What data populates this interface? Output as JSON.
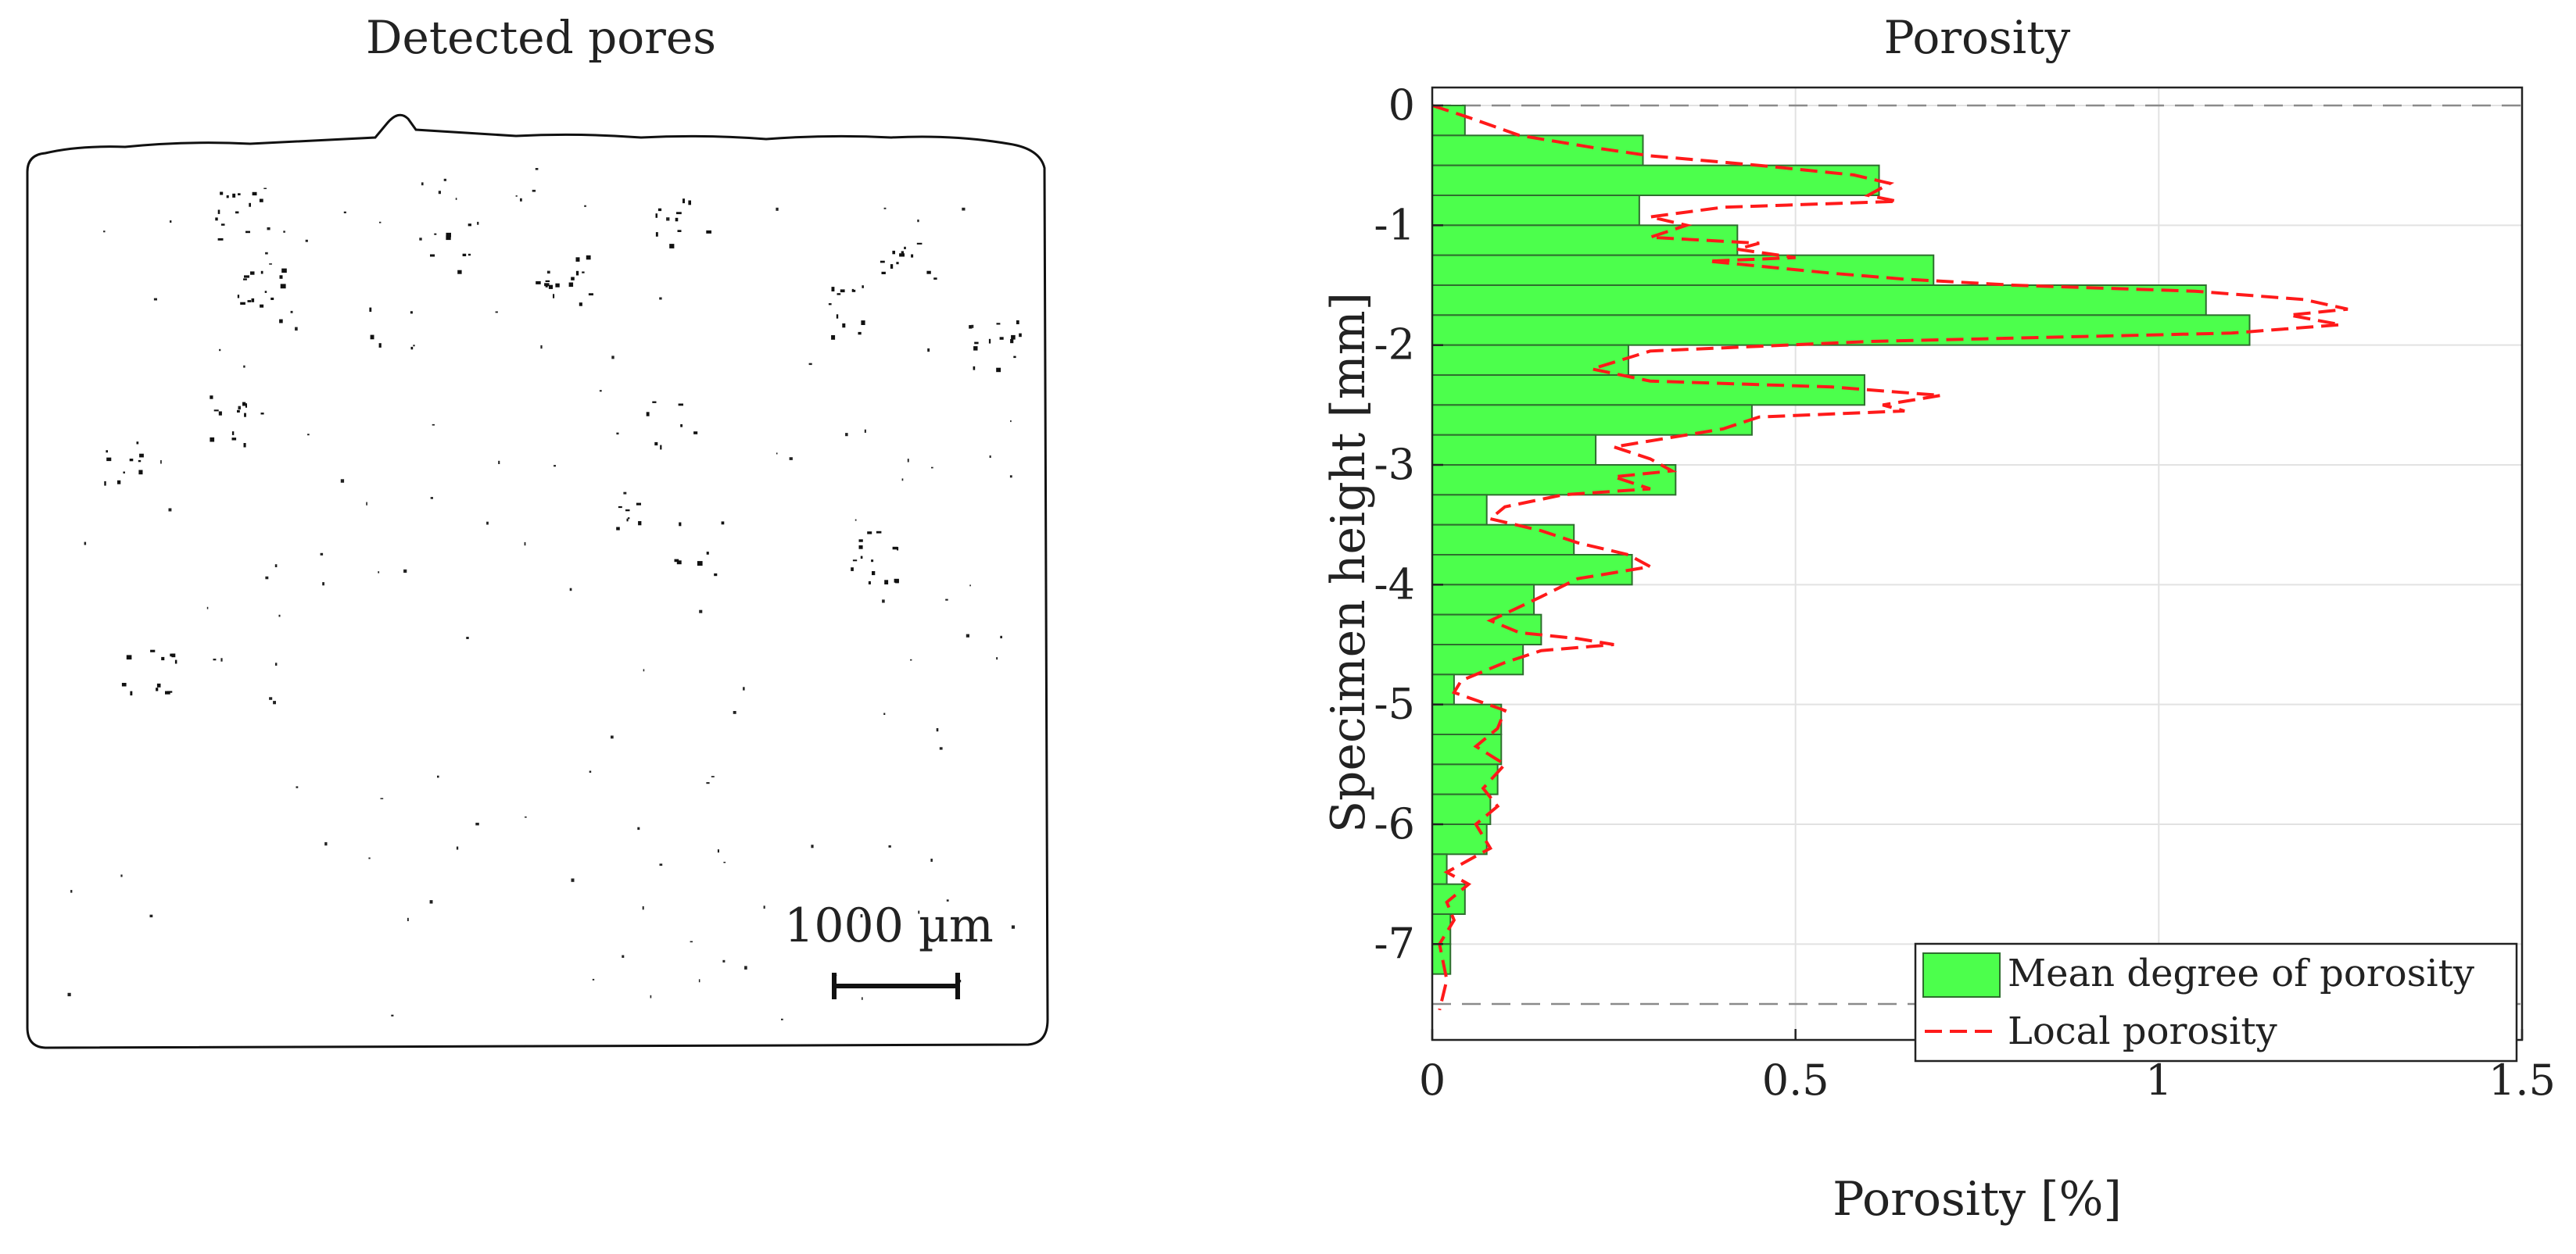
{
  "left_panel": {
    "title": "Detected pores",
    "scalebar_label": "1000 µm"
  },
  "chart_data": {
    "type": "bar",
    "orientation": "horizontal",
    "title": "Porosity",
    "xlabel": "Porosity [%]",
    "ylabel": "Specimen height [mm]",
    "xlim": [
      0,
      1.5
    ],
    "ylim": [
      -7.8,
      0.15
    ],
    "xticks": [
      0,
      0.5,
      1,
      1.5
    ],
    "xtick_labels": [
      "0",
      "0.5",
      "1",
      "1.5"
    ],
    "yticks": [
      0,
      -1,
      -2,
      -3,
      -4,
      -5,
      -6,
      -7
    ],
    "ytick_labels": [
      "0",
      "-1",
      "-2",
      "-3",
      "-4",
      "-5",
      "-6",
      "-7"
    ],
    "grid": true,
    "reference_lines_y": [
      0,
      -7.5
    ],
    "bar_height": 0.25,
    "series": [
      {
        "name": "Mean degree of porosity",
        "type": "bar",
        "color": "#4cff4c",
        "edge_color": "#2e6e2e",
        "y_top": [
          0,
          -0.25,
          -0.5,
          -0.75,
          -1.0,
          -1.25,
          -1.5,
          -1.75,
          -2.0,
          -2.25,
          -2.5,
          -2.75,
          -3.0,
          -3.25,
          -3.5,
          -3.75,
          -4.0,
          -4.25,
          -4.5,
          -4.75,
          -5.0,
          -5.25,
          -5.5,
          -5.75,
          -6.0,
          -6.25,
          -6.5,
          -6.75,
          -7.0,
          -7.25
        ],
        "values": [
          0.045,
          0.29,
          0.615,
          0.285,
          0.42,
          0.69,
          1.065,
          1.125,
          0.27,
          0.595,
          0.44,
          0.225,
          0.335,
          0.075,
          0.195,
          0.275,
          0.14,
          0.15,
          0.125,
          0.03,
          0.095,
          0.095,
          0.09,
          0.08,
          0.075,
          0.02,
          0.045,
          0.025,
          0.025,
          0.0
        ]
      },
      {
        "name": "Local porosity",
        "type": "line",
        "style": "dashed",
        "color": "#ff1a1a",
        "x": [
          0,
          0.05,
          0.12,
          0.22,
          0.3,
          0.45,
          0.58,
          0.63,
          0.6,
          0.64,
          0.4,
          0.3,
          0.35,
          0.3,
          0.45,
          0.42,
          0.5,
          0.38,
          0.55,
          0.65,
          0.8,
          1.05,
          1.2,
          1.26,
          1.18,
          1.25,
          1.1,
          0.6,
          0.3,
          0.22,
          0.3,
          0.55,
          0.7,
          0.62,
          0.65,
          0.45,
          0.4,
          0.25,
          0.3,
          0.33,
          0.25,
          0.3,
          0.18,
          0.1,
          0.08,
          0.15,
          0.2,
          0.27,
          0.3,
          0.2,
          0.15,
          0.08,
          0.12,
          0.2,
          0.25,
          0.15,
          0.1,
          0.04,
          0.03,
          0.1,
          0.09,
          0.06,
          0.1,
          0.07,
          0.09,
          0.06,
          0.08,
          0.02,
          0.05,
          0.02,
          0.03,
          0.01,
          0.02,
          0.01
        ],
        "y": [
          0.0,
          -0.1,
          -0.25,
          -0.35,
          -0.42,
          -0.5,
          -0.58,
          -0.65,
          -0.75,
          -0.8,
          -0.85,
          -0.93,
          -1.0,
          -1.1,
          -1.15,
          -1.2,
          -1.27,
          -1.3,
          -1.4,
          -1.45,
          -1.5,
          -1.55,
          -1.62,
          -1.7,
          -1.75,
          -1.83,
          -1.9,
          -1.97,
          -2.05,
          -2.2,
          -2.3,
          -2.35,
          -2.42,
          -2.5,
          -2.55,
          -2.6,
          -2.7,
          -2.85,
          -2.95,
          -3.05,
          -3.1,
          -3.2,
          -3.25,
          -3.35,
          -3.45,
          -3.55,
          -3.65,
          -3.75,
          -3.85,
          -3.95,
          -4.1,
          -4.3,
          -4.4,
          -4.45,
          -4.5,
          -4.55,
          -4.65,
          -4.8,
          -4.9,
          -5.05,
          -5.2,
          -5.35,
          -5.5,
          -5.7,
          -5.85,
          -6.0,
          -6.2,
          -6.4,
          -6.5,
          -6.65,
          -6.8,
          -7.0,
          -7.3,
          -7.55
        ]
      }
    ],
    "legend": {
      "location": "bottom-right",
      "entries": [
        "Mean degree of porosity",
        "Local porosity"
      ]
    }
  }
}
